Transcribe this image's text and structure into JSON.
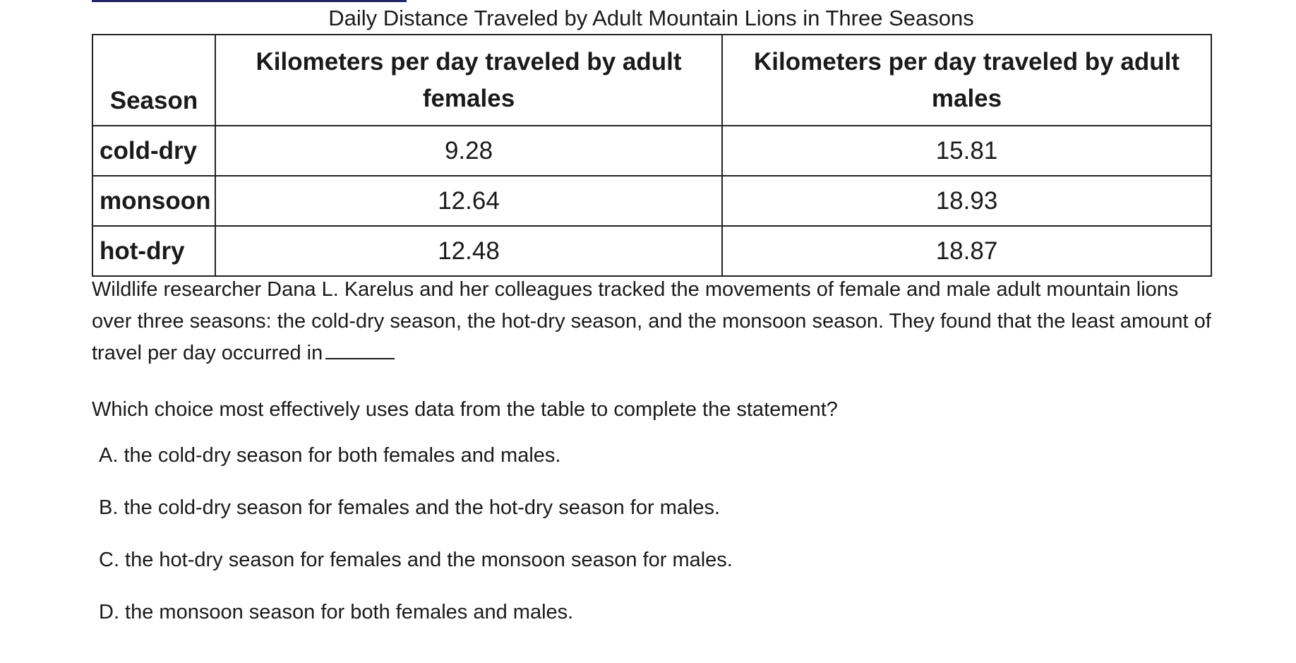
{
  "table": {
    "title": "Daily Distance Traveled by Adult Mountain Lions in Three Seasons",
    "headers": [
      "Season",
      "Kilometers per day traveled by adult females",
      "Kilometers per day traveled by adult males"
    ],
    "rows": [
      {
        "season": "cold-dry",
        "females": "9.28",
        "males": "15.81"
      },
      {
        "season": "monsoon",
        "females": "12.64",
        "males": "18.93"
      },
      {
        "season": "hot-dry",
        "females": "12.48",
        "males": "18.87"
      }
    ]
  },
  "chart_data": {
    "type": "table",
    "title": "Daily Distance Traveled by Adult Mountain Lions in Three Seasons",
    "columns": [
      "Season",
      "Kilometers per day traveled by adult females",
      "Kilometers per day traveled by adult males"
    ],
    "rows": [
      [
        "cold-dry",
        9.28,
        15.81
      ],
      [
        "monsoon",
        12.64,
        18.93
      ],
      [
        "hot-dry",
        12.48,
        18.87
      ]
    ]
  },
  "passage": {
    "text": "Wildlife researcher Dana L. Karelus and her colleagues tracked the movements of female and male adult mountain lions over three seasons: the cold-dry season, the hot-dry season, and the monsoon season. They found that the least amount of travel per day occurred in"
  },
  "question": {
    "text": "Which choice most effectively uses data from the table to complete the statement?"
  },
  "choices": [
    {
      "label": "A. the cold-dry season for both females and males."
    },
    {
      "label": "B. the cold-dry season for females and the hot-dry season for males."
    },
    {
      "label": "C. the hot-dry season for females and the monsoon season for males."
    },
    {
      "label": "D. the monsoon season for both females and males."
    }
  ],
  "colors": {
    "top_rule": "#23256b",
    "text": "#1a1a1a",
    "border": "#222222"
  }
}
